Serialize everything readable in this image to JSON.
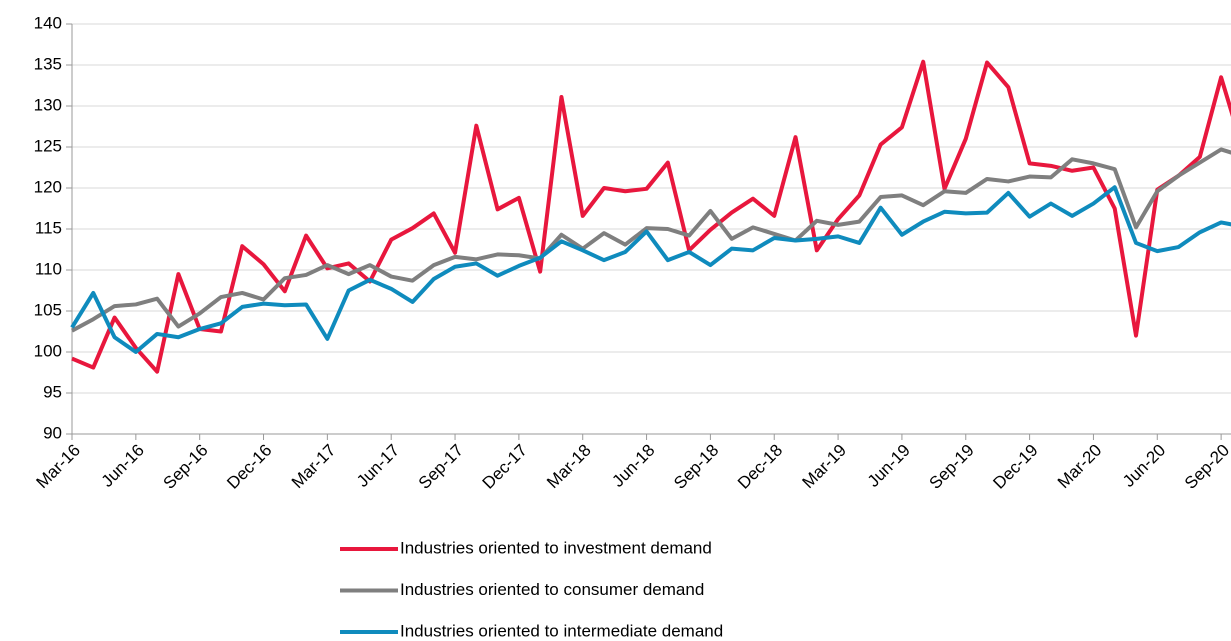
{
  "chart_data": {
    "type": "line",
    "categories": [
      "Mar-16",
      null,
      null,
      "Jun-16",
      null,
      null,
      "Sep-16",
      null,
      null,
      "Dec-16",
      null,
      null,
      "Mar-17",
      null,
      null,
      "Jun-17",
      null,
      null,
      "Sep-17",
      null,
      null,
      "Dec-17",
      null,
      null,
      "Mar-18",
      null,
      null,
      "Jun-18",
      null,
      null,
      "Sep-18",
      null,
      null,
      "Dec-18",
      null,
      null,
      "Mar-19",
      null,
      null,
      "Jun-19",
      null,
      null,
      "Sep-19",
      null,
      null,
      "Dec-19",
      null,
      null,
      "Mar-20",
      null,
      null,
      "Jun-20",
      null,
      null,
      "Sep-20",
      null
    ],
    "series": [
      {
        "name": "Industries oriented to investment demand",
        "color": "#e8173d",
        "values": [
          99.2,
          98.1,
          104.2,
          100.5,
          97.6,
          109.5,
          102.8,
          102.5,
          112.9,
          110.7,
          107.4,
          114.2,
          110.2,
          110.8,
          108.6,
          113.7,
          115.1,
          116.9,
          112.1,
          127.6,
          117.4,
          118.8,
          109.8,
          131.1,
          116.6,
          120.0,
          119.6,
          119.9,
          123.1,
          112.4,
          114.9,
          117.0,
          118.7,
          116.6,
          126.2,
          112.4,
          116.2,
          119.1,
          125.3,
          127.4,
          135.4,
          119.9,
          126.0,
          135.3,
          132.3,
          123.0,
          122.7,
          122.1,
          122.5,
          117.5,
          102.0,
          119.8,
          121.5,
          123.8,
          133.5,
          124.9
        ]
      },
      {
        "name": "Industries oriented to consumer demand",
        "color": "#7f7f7f",
        "values": [
          102.6,
          104.0,
          105.6,
          105.8,
          106.5,
          103.1,
          104.7,
          106.7,
          107.2,
          106.4,
          109.0,
          109.4,
          110.6,
          109.5,
          110.6,
          109.2,
          108.7,
          110.6,
          111.6,
          111.3,
          111.9,
          111.8,
          111.4,
          114.3,
          112.6,
          114.5,
          113.1,
          115.1,
          115.0,
          114.2,
          117.2,
          113.8,
          115.2,
          114.4,
          113.6,
          116.0,
          115.5,
          115.9,
          118.9,
          119.1,
          117.9,
          119.6,
          119.4,
          121.1,
          120.8,
          121.4,
          121.3,
          123.5,
          123.0,
          122.3,
          115.2,
          119.6,
          121.5,
          123.1,
          124.7,
          123.9
        ]
      },
      {
        "name": "Industries oriented to intermediate demand",
        "color": "#0f8bbd",
        "values": [
          103.0,
          107.2,
          101.8,
          100.0,
          102.2,
          101.8,
          102.8,
          103.5,
          105.5,
          105.9,
          105.7,
          105.8,
          101.6,
          107.5,
          108.8,
          107.7,
          106.1,
          108.9,
          110.4,
          110.8,
          109.3,
          110.5,
          111.5,
          113.5,
          112.4,
          111.2,
          112.2,
          114.7,
          111.2,
          112.2,
          110.6,
          112.6,
          112.4,
          113.9,
          113.6,
          113.8,
          114.1,
          113.3,
          117.6,
          114.3,
          115.9,
          117.1,
          116.9,
          117.0,
          119.4,
          116.5,
          118.1,
          116.6,
          118.1,
          120.1,
          113.3,
          112.3,
          112.8,
          114.6,
          115.8,
          115.3
        ]
      }
    ],
    "ylim": [
      90,
      140
    ],
    "yticks": [
      90,
      95,
      100,
      105,
      110,
      115,
      120,
      125,
      130,
      135,
      140
    ],
    "grid": true,
    "legend": "bottom"
  }
}
